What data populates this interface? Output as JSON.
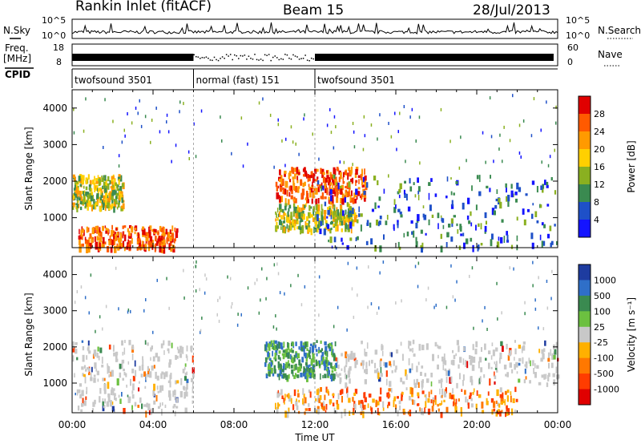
{
  "header": {
    "station": "Rankin Inlet (fitACF)",
    "beam": "Beam 15",
    "date": "28/Jul/2013"
  },
  "noise_panel": {
    "left_label": "N.Sky",
    "right_label": "N.Search",
    "tick_top": "10^5",
    "tick_bottom": "10^0",
    "right_tick_top": "10^5",
    "right_tick_bottom": "10^0"
  },
  "freq_panel": {
    "left_label_line1": "Freq.",
    "left_label_line2": "[MHz]",
    "right_label": "Nave",
    "left_ticks": [
      "18",
      "8"
    ],
    "right_ticks": [
      "60",
      "0"
    ]
  },
  "cpid_panel": {
    "label": "CPID",
    "segments": [
      {
        "name": "twofsound 3501",
        "start_h": 0,
        "end_h": 6
      },
      {
        "name": "normal (fast) 151",
        "start_h": 6,
        "end_h": 12
      },
      {
        "name": "twofsound 3501",
        "start_h": 12,
        "end_h": 24
      }
    ]
  },
  "chart_data": [
    {
      "type": "heatmap",
      "title": "Power",
      "ylabel": "Slant Range [km]",
      "ylim": [
        180,
        4500
      ],
      "yticks": [
        "4000",
        "3000",
        "2000",
        "1000"
      ],
      "colorbar_label": "Power [dB]",
      "colorbar_ticks": [
        "28",
        "24",
        "20",
        "16",
        "12",
        "8",
        "4"
      ],
      "colorbar_colors": [
        "#e00000",
        "#ff5a00",
        "#ff9a00",
        "#ffd000",
        "#8ab020",
        "#3a8a50",
        "#1e50c8",
        "#1414ff"
      ],
      "echo_regions": [
        {
          "t0": 0.3,
          "t1": 5.2,
          "r0": 200,
          "r1": 800,
          "level": "high"
        },
        {
          "t0": 0.0,
          "t1": 2.5,
          "r0": 1300,
          "r1": 2200,
          "level": "mid"
        },
        {
          "t0": 10.0,
          "t1": 14.5,
          "r0": 1500,
          "r1": 2400,
          "level": "high"
        },
        {
          "t0": 10.0,
          "t1": 14.0,
          "r0": 700,
          "r1": 1400,
          "level": "mid"
        },
        {
          "t0": 12.0,
          "t1": 24.0,
          "r0": 200,
          "r1": 2200,
          "level": "low"
        }
      ]
    },
    {
      "type": "heatmap",
      "title": "Velocity",
      "ylabel": "Slant Range [km]",
      "xlabel": "Time UT",
      "ylim": [
        180,
        4500
      ],
      "yticks": [
        "4000",
        "3000",
        "2000",
        "1000"
      ],
      "xticks": [
        "00:00",
        "04:00",
        "08:00",
        "12:00",
        "16:00",
        "20:00",
        "00:00"
      ],
      "colorbar_label": "Velocity [m s⁻¹]",
      "colorbar_ticks": [
        "1000",
        "500",
        "100",
        "25",
        "-25",
        "-100",
        "-500",
        "-1000"
      ],
      "colorbar_colors": [
        "#1e3ca0",
        "#2f6fc8",
        "#3a8a50",
        "#6cc040",
        "#c8c8c8",
        "#ffb000",
        "#ff7800",
        "#ff3c00",
        "#e00000"
      ],
      "echo_regions": [
        {
          "t0": 0.0,
          "t1": 6.0,
          "r0": 200,
          "r1": 2200,
          "level": "grey"
        },
        {
          "t0": 9.5,
          "t1": 13.0,
          "r0": 1200,
          "r1": 2200,
          "level": "green"
        },
        {
          "t0": 10.0,
          "t1": 22.0,
          "r0": 200,
          "r1": 900,
          "level": "orange"
        },
        {
          "t0": 13.0,
          "t1": 24.0,
          "r0": 1000,
          "r1": 2200,
          "level": "grey"
        }
      ]
    }
  ]
}
